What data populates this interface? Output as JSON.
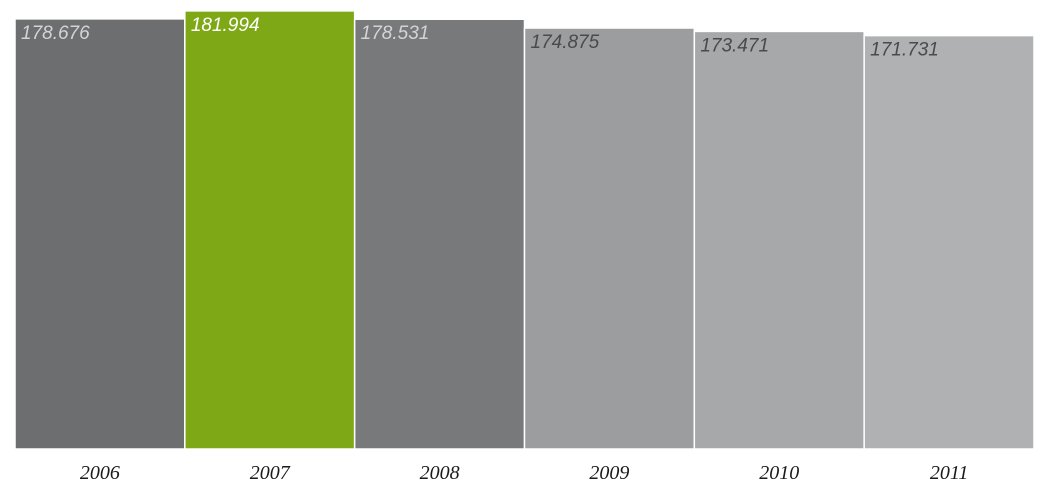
{
  "chart_data": {
    "type": "bar",
    "categories": [
      "2006",
      "2007",
      "2008",
      "2009",
      "2010",
      "2011"
    ],
    "values": [
      178.676,
      181.994,
      178.531,
      174.875,
      173.471,
      171.731
    ],
    "value_labels": [
      "178.676",
      "181.994",
      "178.531",
      "174.875",
      "173.471",
      "171.731"
    ],
    "title": "",
    "xlabel": "",
    "ylabel": "",
    "ylim": [
      0,
      183.2
    ],
    "grid": false,
    "legend": "none",
    "bar_colors": [
      "#6d6e70",
      "#7fa817",
      "#78797b",
      "#9c9d9f",
      "#a7a8aa",
      "#b0b1b3"
    ],
    "label_colors": [
      "#d4d4d6",
      "#ffffff",
      "#d4d4d6",
      "#4a4a4c",
      "#4a4a4c",
      "#4a4a4c"
    ]
  }
}
